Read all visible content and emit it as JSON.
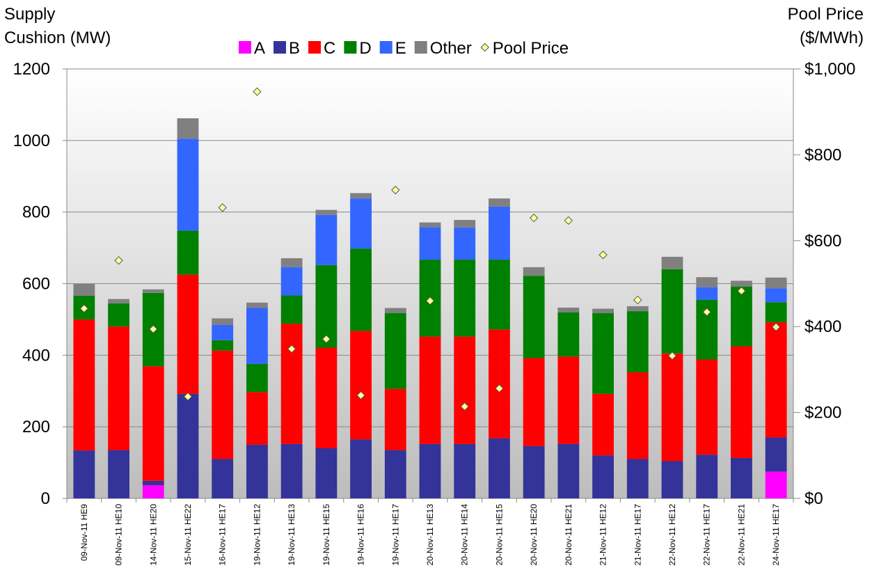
{
  "chart_data": {
    "type": "bar",
    "stacked": true,
    "y_label": "Supply\nCushion (MW)",
    "y2_label": "Pool Price\n($/MWh)",
    "categories": [
      "09-Nov-11 HE9",
      "09-Nov-11 HE10",
      "14-Nov-11 HE20",
      "15-Nov-11 HE22",
      "16-Nov-11 HE17",
      "19-Nov-11 HE12",
      "19-Nov-11 HE13",
      "19-Nov-11 HE15",
      "19-Nov-11 HE16",
      "19-Nov-11 HE17",
      "20-Nov-11 HE13",
      "20-Nov-11 HE14",
      "20-Nov-11 HE15",
      "20-Nov-11 HE20",
      "20-Nov-11 HE21",
      "21-Nov-11 HE12",
      "21-Nov-11 HE17",
      "22-Nov-11 HE12",
      "22-Nov-11 HE17",
      "22-Nov-11 HE21",
      "24-Nov-11 HE17"
    ],
    "series": [
      {
        "name": "A",
        "color": "#ff00ff",
        "values": [
          0,
          0,
          37,
          0,
          0,
          0,
          0,
          0,
          0,
          0,
          0,
          0,
          0,
          0,
          0,
          0,
          0,
          0,
          0,
          0,
          75
        ]
      },
      {
        "name": "B",
        "color": "#333399",
        "values": [
          134,
          135,
          12,
          292,
          110,
          150,
          152,
          140,
          165,
          135,
          152,
          152,
          168,
          146,
          152,
          120,
          110,
          104,
          122,
          113,
          95
        ]
      },
      {
        "name": "C",
        "color": "#ff0000",
        "values": [
          366,
          345,
          320,
          333,
          303,
          147,
          336,
          281,
          303,
          171,
          300,
          300,
          304,
          246,
          244,
          172,
          242,
          301,
          266,
          312,
          322
        ]
      },
      {
        "name": "D",
        "color": "#008000",
        "values": [
          66,
          65,
          205,
          123,
          29,
          79,
          79,
          231,
          230,
          212,
          215,
          215,
          195,
          230,
          124,
          226,
          171,
          235,
          167,
          167,
          56
        ]
      },
      {
        "name": "E",
        "color": "#3366ff",
        "values": [
          0,
          0,
          0,
          257,
          43,
          156,
          79,
          140,
          140,
          0,
          91,
          90,
          148,
          0,
          0,
          0,
          0,
          0,
          35,
          0,
          39
        ]
      },
      {
        "name": "Other",
        "color": "#808080",
        "values": [
          33,
          12,
          10,
          57,
          18,
          15,
          25,
          14,
          15,
          14,
          13,
          21,
          23,
          24,
          13,
          12,
          14,
          35,
          28,
          16,
          30
        ]
      },
      {
        "name": "Pool Price",
        "color": "#ffff99",
        "axis": "y2",
        "values": [
          442,
          554,
          394,
          237,
          677,
          947,
          348,
          371,
          240,
          718,
          460,
          214,
          256,
          653,
          647,
          567,
          462,
          332,
          434,
          483,
          399
        ]
      }
    ],
    "ylim": [
      0,
      1200
    ],
    "yticks": [
      0,
      200,
      400,
      600,
      800,
      1000,
      1200
    ],
    "y2lim": [
      0,
      1000
    ],
    "y2ticks": [
      {
        "value": 0,
        "label": "$0"
      },
      {
        "value": 200,
        "label": "$200"
      },
      {
        "value": 400,
        "label": "$400"
      },
      {
        "value": 600,
        "label": "$600"
      },
      {
        "value": 800,
        "label": "$800"
      },
      {
        "value": 1000,
        "label": "$1,000"
      }
    ],
    "grid": true
  }
}
